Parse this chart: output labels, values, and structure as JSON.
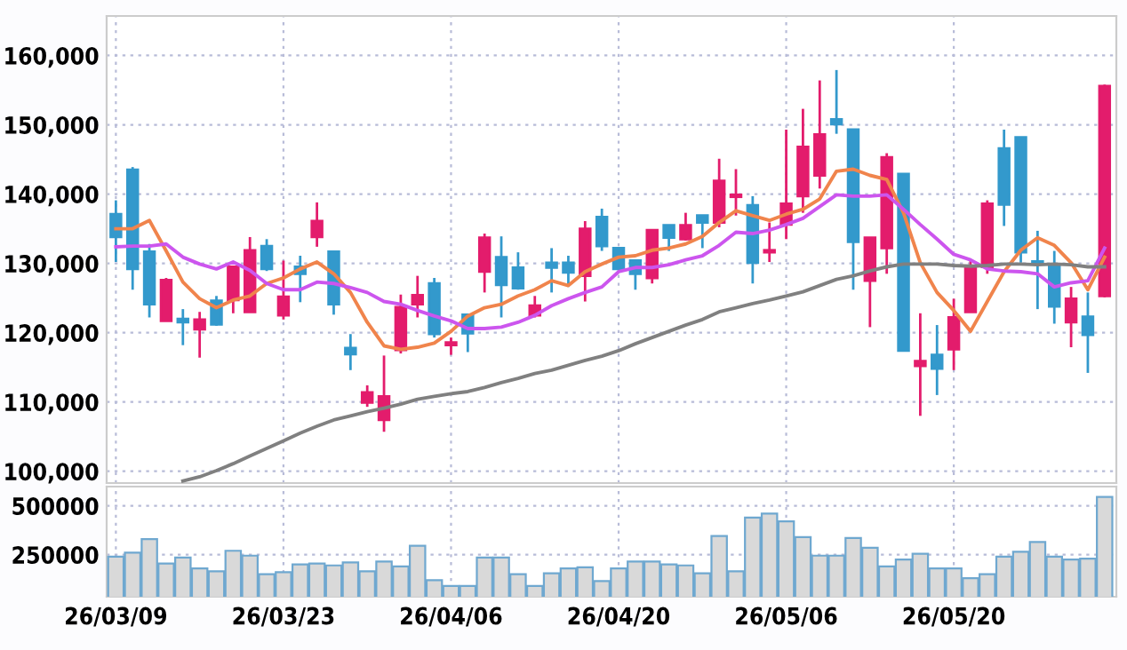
{
  "chart_data": [
    {
      "type": "candlestick",
      "categories": [
        null,
        null,
        null,
        null,
        null,
        null,
        null,
        null,
        null,
        null,
        null,
        null,
        null,
        null,
        null,
        null,
        null,
        null,
        null,
        null,
        null,
        null,
        null,
        null,
        null,
        null,
        null,
        null,
        null,
        null,
        null,
        null,
        null,
        null,
        null,
        null,
        null,
        null,
        null,
        null,
        null,
        null,
        null,
        null,
        null,
        null,
        null,
        null,
        null,
        null,
        null,
        null,
        null,
        null,
        null,
        null,
        null,
        null,
        null,
        null
      ],
      "ohlc": [
        [
          137100,
          139100,
          130200,
          133800
        ],
        [
          143500,
          143900,
          126200,
          129200
        ],
        [
          131700,
          132800,
          122200,
          124100
        ],
        [
          121700,
          127900,
          121700,
          127600
        ],
        [
          122000,
          123400,
          118200,
          121500
        ],
        [
          120500,
          123000,
          116400,
          121900
        ],
        [
          124600,
          125300,
          121000,
          121200
        ],
        [
          124700,
          129500,
          122800,
          129500
        ],
        [
          123000,
          133800,
          123000,
          131900
        ],
        [
          132500,
          133500,
          128900,
          129200
        ],
        [
          122500,
          130400,
          121900,
          125200
        ],
        [
          129500,
          131100,
          124400,
          128500
        ],
        [
          133800,
          138800,
          132400,
          136100
        ],
        [
          131700,
          131700,
          122600,
          124100
        ],
        [
          117800,
          119800,
          114600,
          116900
        ],
        [
          109900,
          112400,
          109300,
          111400
        ],
        [
          107400,
          116700,
          105700,
          110800
        ],
        [
          117500,
          125500,
          117000,
          123700
        ],
        [
          124100,
          128200,
          122200,
          125400
        ],
        [
          127100,
          127900,
          119300,
          119800
        ],
        [
          118200,
          119300,
          116800,
          118600
        ],
        [
          122600,
          122600,
          117200,
          119900
        ],
        [
          128800,
          134300,
          125800,
          133700
        ],
        [
          130900,
          133900,
          122200,
          126900
        ],
        [
          129400,
          131600,
          126200,
          126400
        ],
        [
          122500,
          125300,
          122200,
          123900
        ],
        [
          130100,
          132200,
          125800,
          129400
        ],
        [
          130100,
          131100,
          126600,
          128700
        ],
        [
          128200,
          136100,
          124500,
          135000
        ],
        [
          136700,
          137900,
          131800,
          132500
        ],
        [
          132200,
          132200,
          129000,
          129200
        ],
        [
          130400,
          130400,
          126200,
          128500
        ],
        [
          127900,
          134800,
          127100,
          134800
        ],
        [
          135500,
          135500,
          131800,
          133700
        ],
        [
          133500,
          137300,
          133300,
          135500
        ],
        [
          136900,
          136900,
          132200,
          135900
        ],
        [
          135900,
          145100,
          135200,
          141900
        ],
        [
          139600,
          143600,
          136900,
          139900
        ],
        [
          138400,
          139700,
          127100,
          130100
        ],
        [
          131600,
          135900,
          130200,
          131900
        ],
        [
          135600,
          149300,
          133500,
          138600
        ],
        [
          139700,
          152300,
          137300,
          146800
        ],
        [
          142700,
          156400,
          140800,
          148600
        ],
        [
          150800,
          157900,
          148700,
          150100
        ],
        [
          149300,
          149300,
          126200,
          133100
        ],
        [
          127500,
          133700,
          120800,
          133700
        ],
        [
          132200,
          145900,
          128500,
          145300
        ],
        [
          142900,
          142900,
          117400,
          117400
        ],
        [
          115200,
          122800,
          108000,
          115900
        ],
        [
          116800,
          121100,
          111000,
          114800
        ],
        [
          117600,
          124900,
          114600,
          122200
        ],
        [
          123000,
          130500,
          123000,
          129500
        ],
        [
          129500,
          139100,
          128500,
          138600
        ],
        [
          146600,
          149300,
          135400,
          138500
        ],
        [
          148200,
          148200,
          130100,
          131600
        ],
        [
          130300,
          134700,
          123400,
          129900
        ],
        [
          129900,
          131800,
          121300,
          123800
        ],
        [
          121500,
          126600,
          117900,
          124900
        ],
        [
          122300,
          125800,
          114200,
          119700
        ],
        [
          125300,
          155800,
          125100,
          155600
        ]
      ],
      "colors": [
        "#3399cc",
        "#3399cc",
        "#3399cc",
        "#e31c6c",
        "#3399cc",
        "#e31c6c",
        "#3399cc",
        "#e31c6c",
        "#e31c6c",
        "#3399cc",
        "#e31c6c",
        "#3399cc",
        "#e31c6c",
        "#3399cc",
        "#3399cc",
        "#e31c6c",
        "#e31c6c",
        "#e31c6c",
        "#e31c6c",
        "#3399cc",
        "#e31c6c",
        "#3399cc",
        "#e31c6c",
        "#3399cc",
        "#3399cc",
        "#e31c6c",
        "#3399cc",
        "#3399cc",
        "#e31c6c",
        "#3399cc",
        "#3399cc",
        "#3399cc",
        "#e31c6c",
        "#3399cc",
        "#e31c6c",
        "#3399cc",
        "#e31c6c",
        "#e31c6c",
        "#3399cc",
        "#e31c6c",
        "#e31c6c",
        "#e31c6c",
        "#e31c6c",
        "#3399cc",
        "#3399cc",
        "#e31c6c",
        "#e31c6c",
        "#3399cc",
        "#e31c6c",
        "#3399cc",
        "#e31c6c",
        "#e31c6c",
        "#e31c6c",
        "#3399cc",
        "#3399cc",
        "#3399cc",
        "#3399cc",
        "#e31c6c",
        "#3399cc",
        "#e31c6c"
      ],
      "series": [
        {
          "type": "line",
          "color": "#f0844c",
          "values": [
            135000,
            135000,
            136200,
            131800,
            127300,
            124900,
            123600,
            124700,
            125300,
            127100,
            127900,
            129200,
            130200,
            128500,
            125800,
            121500,
            118100,
            117600,
            117900,
            118500,
            120200,
            122400,
            123600,
            124100,
            125300,
            126200,
            127500,
            126800,
            128800,
            129900,
            130900,
            131100,
            131900,
            132200,
            132800,
            133900,
            135900,
            137600,
            136900,
            136200,
            137100,
            137800,
            139300,
            143300,
            143600,
            142700,
            142100,
            137300,
            130100,
            125800,
            123200,
            120200,
            124500,
            128800,
            131900,
            133700,
            132600,
            130100,
            126200,
            130900
          ]
        },
        {
          "type": "line",
          "color": "#cc55ee",
          "values": [
            132400,
            132500,
            132500,
            132800,
            130900,
            129900,
            129200,
            130200,
            129000,
            127100,
            126200,
            126200,
            127300,
            127100,
            126500,
            125800,
            124500,
            124100,
            123200,
            122400,
            121700,
            120600,
            120600,
            120800,
            121500,
            122500,
            123900,
            124900,
            125800,
            126600,
            128800,
            129400,
            129400,
            129800,
            130500,
            131100,
            132600,
            134500,
            134300,
            134800,
            135600,
            136500,
            138200,
            139900,
            139700,
            139700,
            139900,
            137800,
            135600,
            133500,
            131300,
            130500,
            129200,
            128900,
            128800,
            128500,
            126600,
            127200,
            127500,
            132200
          ]
        },
        {
          "type": "line",
          "color": "#808080",
          "values": [
            null,
            null,
            null,
            null,
            98600,
            99200,
            100100,
            101100,
            102200,
            103300,
            104400,
            105500,
            106500,
            107400,
            108000,
            108600,
            109100,
            109700,
            110400,
            110800,
            111200,
            111500,
            112100,
            112800,
            113400,
            114100,
            114600,
            115300,
            116000,
            116600,
            117400,
            118400,
            119300,
            120200,
            121100,
            121900,
            123000,
            123600,
            124200,
            124700,
            125300,
            125900,
            126800,
            127700,
            128200,
            128900,
            129500,
            129900,
            129900,
            129900,
            129700,
            129600,
            129700,
            129900,
            129900,
            129800,
            129900,
            129800,
            129500,
            129500
          ]
        }
      ],
      "ylim": [
        98300,
        165700
      ],
      "yticks": [
        {
          "value": 100000,
          "label": "100,000"
        },
        {
          "value": 110000,
          "label": "110,000"
        },
        {
          "value": 120000,
          "label": "120,000"
        },
        {
          "value": 130000,
          "label": "130,000"
        },
        {
          "value": 140000,
          "label": "140,000"
        },
        {
          "value": 150000,
          "label": "150,000"
        },
        {
          "value": 160000,
          "label": "160,000"
        }
      ],
      "grid": true,
      "tick_labels": "y"
    },
    {
      "type": "bar",
      "categories": [
        "26/03/09",
        null,
        null,
        null,
        null,
        null,
        null,
        null,
        null,
        null,
        "26/03/23",
        null,
        null,
        null,
        null,
        null,
        null,
        null,
        null,
        null,
        "26/04/06",
        null,
        null,
        null,
        null,
        null,
        null,
        null,
        null,
        null,
        "26/04/20",
        null,
        null,
        null,
        null,
        null,
        null,
        null,
        null,
        null,
        "26/05/06",
        null,
        null,
        null,
        null,
        null,
        null,
        null,
        null,
        null,
        "26/05/20",
        null,
        null,
        null,
        null,
        null,
        null,
        null,
        null,
        null
      ],
      "values": [
        240000,
        260000,
        330000,
        205000,
        235000,
        180000,
        165000,
        270000,
        245000,
        150000,
        160000,
        200000,
        205000,
        195000,
        210000,
        165000,
        215000,
        190000,
        295000,
        120000,
        90000,
        90000,
        235000,
        235000,
        150000,
        90000,
        155000,
        180000,
        185000,
        115000,
        180000,
        215000,
        215000,
        200000,
        195000,
        155000,
        345000,
        165000,
        440000,
        460000,
        420000,
        340000,
        245000,
        245000,
        335000,
        285000,
        190000,
        225000,
        255000,
        180000,
        180000,
        130000,
        150000,
        240000,
        265000,
        315000,
        240000,
        225000,
        230000,
        545000
      ],
      "color": "#d9d9d9",
      "ylim": [
        35000,
        598000
      ],
      "yticks": [
        250000,
        500000
      ],
      "grid": true
    }
  ]
}
